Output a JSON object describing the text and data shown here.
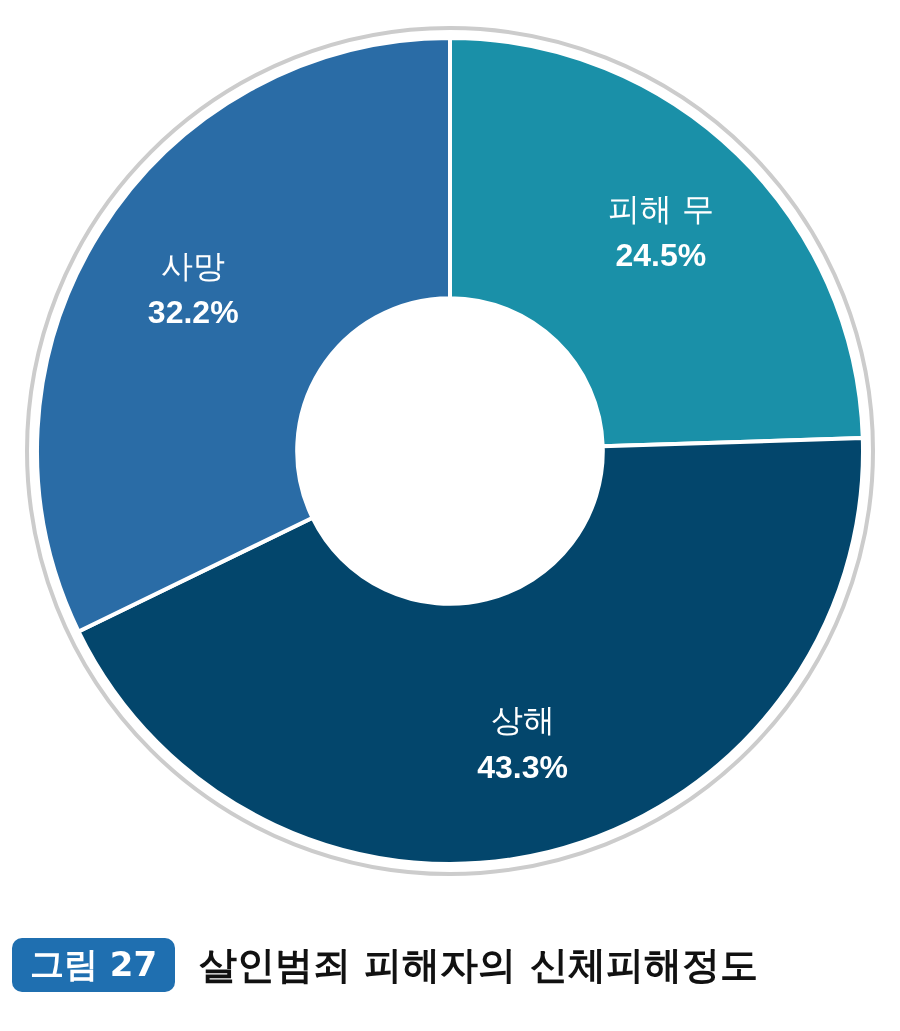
{
  "chart_data": {
    "type": "donut",
    "title": "살인범죄 피해자의 신체피해정도",
    "annotations": [
      "그림 27"
    ],
    "categories": [
      "피해 무",
      "상해",
      "사망"
    ],
    "values": [
      24.5,
      43.3,
      32.2
    ],
    "value_labels": [
      "24.5%",
      "43.3%",
      "32.2%"
    ],
    "colors": [
      "#1a90a8",
      "#03466c",
      "#2a6ca6"
    ],
    "legend": false
  }
}
